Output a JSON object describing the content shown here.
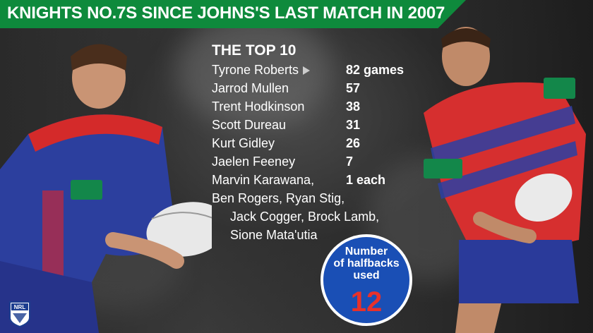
{
  "header": {
    "title": "KNIGHTS NO.7S SINCE JOHNS'S LAST MATCH IN 2007"
  },
  "list": {
    "title": "THE TOP 10",
    "rows": [
      {
        "name": "Tyrone Roberts",
        "value": "82 games"
      },
      {
        "name": "Jarrod Mullen",
        "value": "57"
      },
      {
        "name": "Trent Hodkinson",
        "value": "38"
      },
      {
        "name": "Scott Dureau",
        "value": "31"
      },
      {
        "name": "Kurt Gidley",
        "value": "26"
      },
      {
        "name": "Jaelen Feeney",
        "value": "7"
      },
      {
        "name": "Marvin Karawana,",
        "value": "1 each"
      }
    ],
    "continuation": [
      "Ben Rogers, Ryan Stig,",
      "Jack Cogger, Brock Lamb,",
      "Sione Mata'utia"
    ]
  },
  "badge": {
    "text": "Number\nof halfbacks\nused",
    "number": "12"
  },
  "logos": {
    "nrl": "NRL"
  },
  "colors": {
    "header_green": "#0e8a3c",
    "badge_blue": "#1a4fb5",
    "badge_number_red": "#e8312a"
  }
}
